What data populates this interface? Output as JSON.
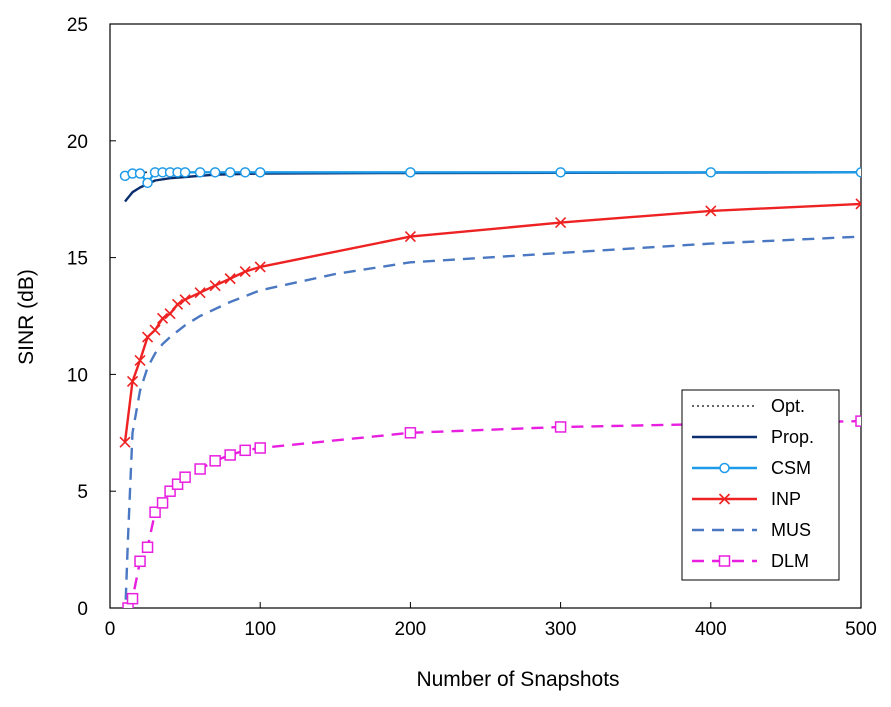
{
  "chart_data": {
    "type": "line",
    "xlabel": "Number of Snapshots",
    "ylabel": "SINR (dB)",
    "xlim": [
      0,
      500
    ],
    "ylim": [
      0,
      25
    ],
    "xticks": [
      0,
      100,
      200,
      300,
      400,
      500
    ],
    "yticks": [
      0,
      5,
      10,
      15,
      20,
      25
    ],
    "grid": false,
    "legend_position": "bottom-right",
    "series": [
      {
        "name": "Opt.",
        "color": "#333333",
        "style": "dotted",
        "marker": "none",
        "x": [
          10,
          500
        ],
        "y": [
          18.65,
          18.65
        ]
      },
      {
        "name": "Prop.",
        "color": "#0b2e6e",
        "style": "solid",
        "marker": "none",
        "x": [
          10,
          15,
          20,
          25,
          30,
          40,
          50,
          60,
          70,
          100,
          200,
          300,
          400,
          500
        ],
        "y": [
          17.4,
          17.8,
          18.0,
          18.15,
          18.3,
          18.4,
          18.45,
          18.5,
          18.55,
          18.6,
          18.62,
          18.63,
          18.64,
          18.65
        ]
      },
      {
        "name": "CSM",
        "color": "#1e9be8",
        "style": "solid",
        "marker": "circle",
        "x": [
          10,
          15,
          20,
          25,
          30,
          35,
          40,
          45,
          50,
          60,
          70,
          80,
          90,
          100,
          200,
          300,
          400,
          500
        ],
        "y": [
          18.5,
          18.6,
          18.6,
          18.2,
          18.65,
          18.65,
          18.65,
          18.65,
          18.65,
          18.65,
          18.65,
          18.65,
          18.65,
          18.65,
          18.65,
          18.65,
          18.65,
          18.65
        ]
      },
      {
        "name": "INP",
        "color": "#ee2222",
        "style": "solid",
        "marker": "x",
        "x": [
          10,
          15,
          20,
          25,
          30,
          35,
          40,
          45,
          50,
          60,
          70,
          80,
          90,
          100,
          200,
          300,
          400,
          500
        ],
        "y": [
          7.1,
          9.7,
          10.6,
          11.6,
          11.9,
          12.4,
          12.6,
          13.0,
          13.2,
          13.5,
          13.8,
          14.1,
          14.4,
          14.6,
          15.9,
          16.5,
          17.0,
          17.3
        ]
      },
      {
        "name": "MUS",
        "color": "#4a78c2",
        "style": "dashed",
        "marker": "none",
        "x": [
          10,
          12,
          15,
          20,
          25,
          30,
          35,
          40,
          50,
          60,
          80,
          100,
          150,
          200,
          300,
          400,
          500
        ],
        "y": [
          -0.5,
          3.0,
          7.5,
          9.3,
          10.3,
          10.9,
          11.3,
          11.6,
          12.1,
          12.5,
          13.1,
          13.6,
          14.3,
          14.8,
          15.2,
          15.6,
          15.9
        ]
      },
      {
        "name": "DLM",
        "color": "#e81ee0",
        "style": "dashed",
        "marker": "square",
        "x": [
          12,
          15,
          20,
          25,
          30,
          35,
          40,
          45,
          50,
          60,
          70,
          80,
          90,
          100,
          200,
          300,
          500
        ],
        "y": [
          0.0,
          0.4,
          2.0,
          2.6,
          4.1,
          4.5,
          5.0,
          5.3,
          5.6,
          5.95,
          6.3,
          6.55,
          6.75,
          6.85,
          7.5,
          7.75,
          8.0
        ]
      }
    ]
  }
}
